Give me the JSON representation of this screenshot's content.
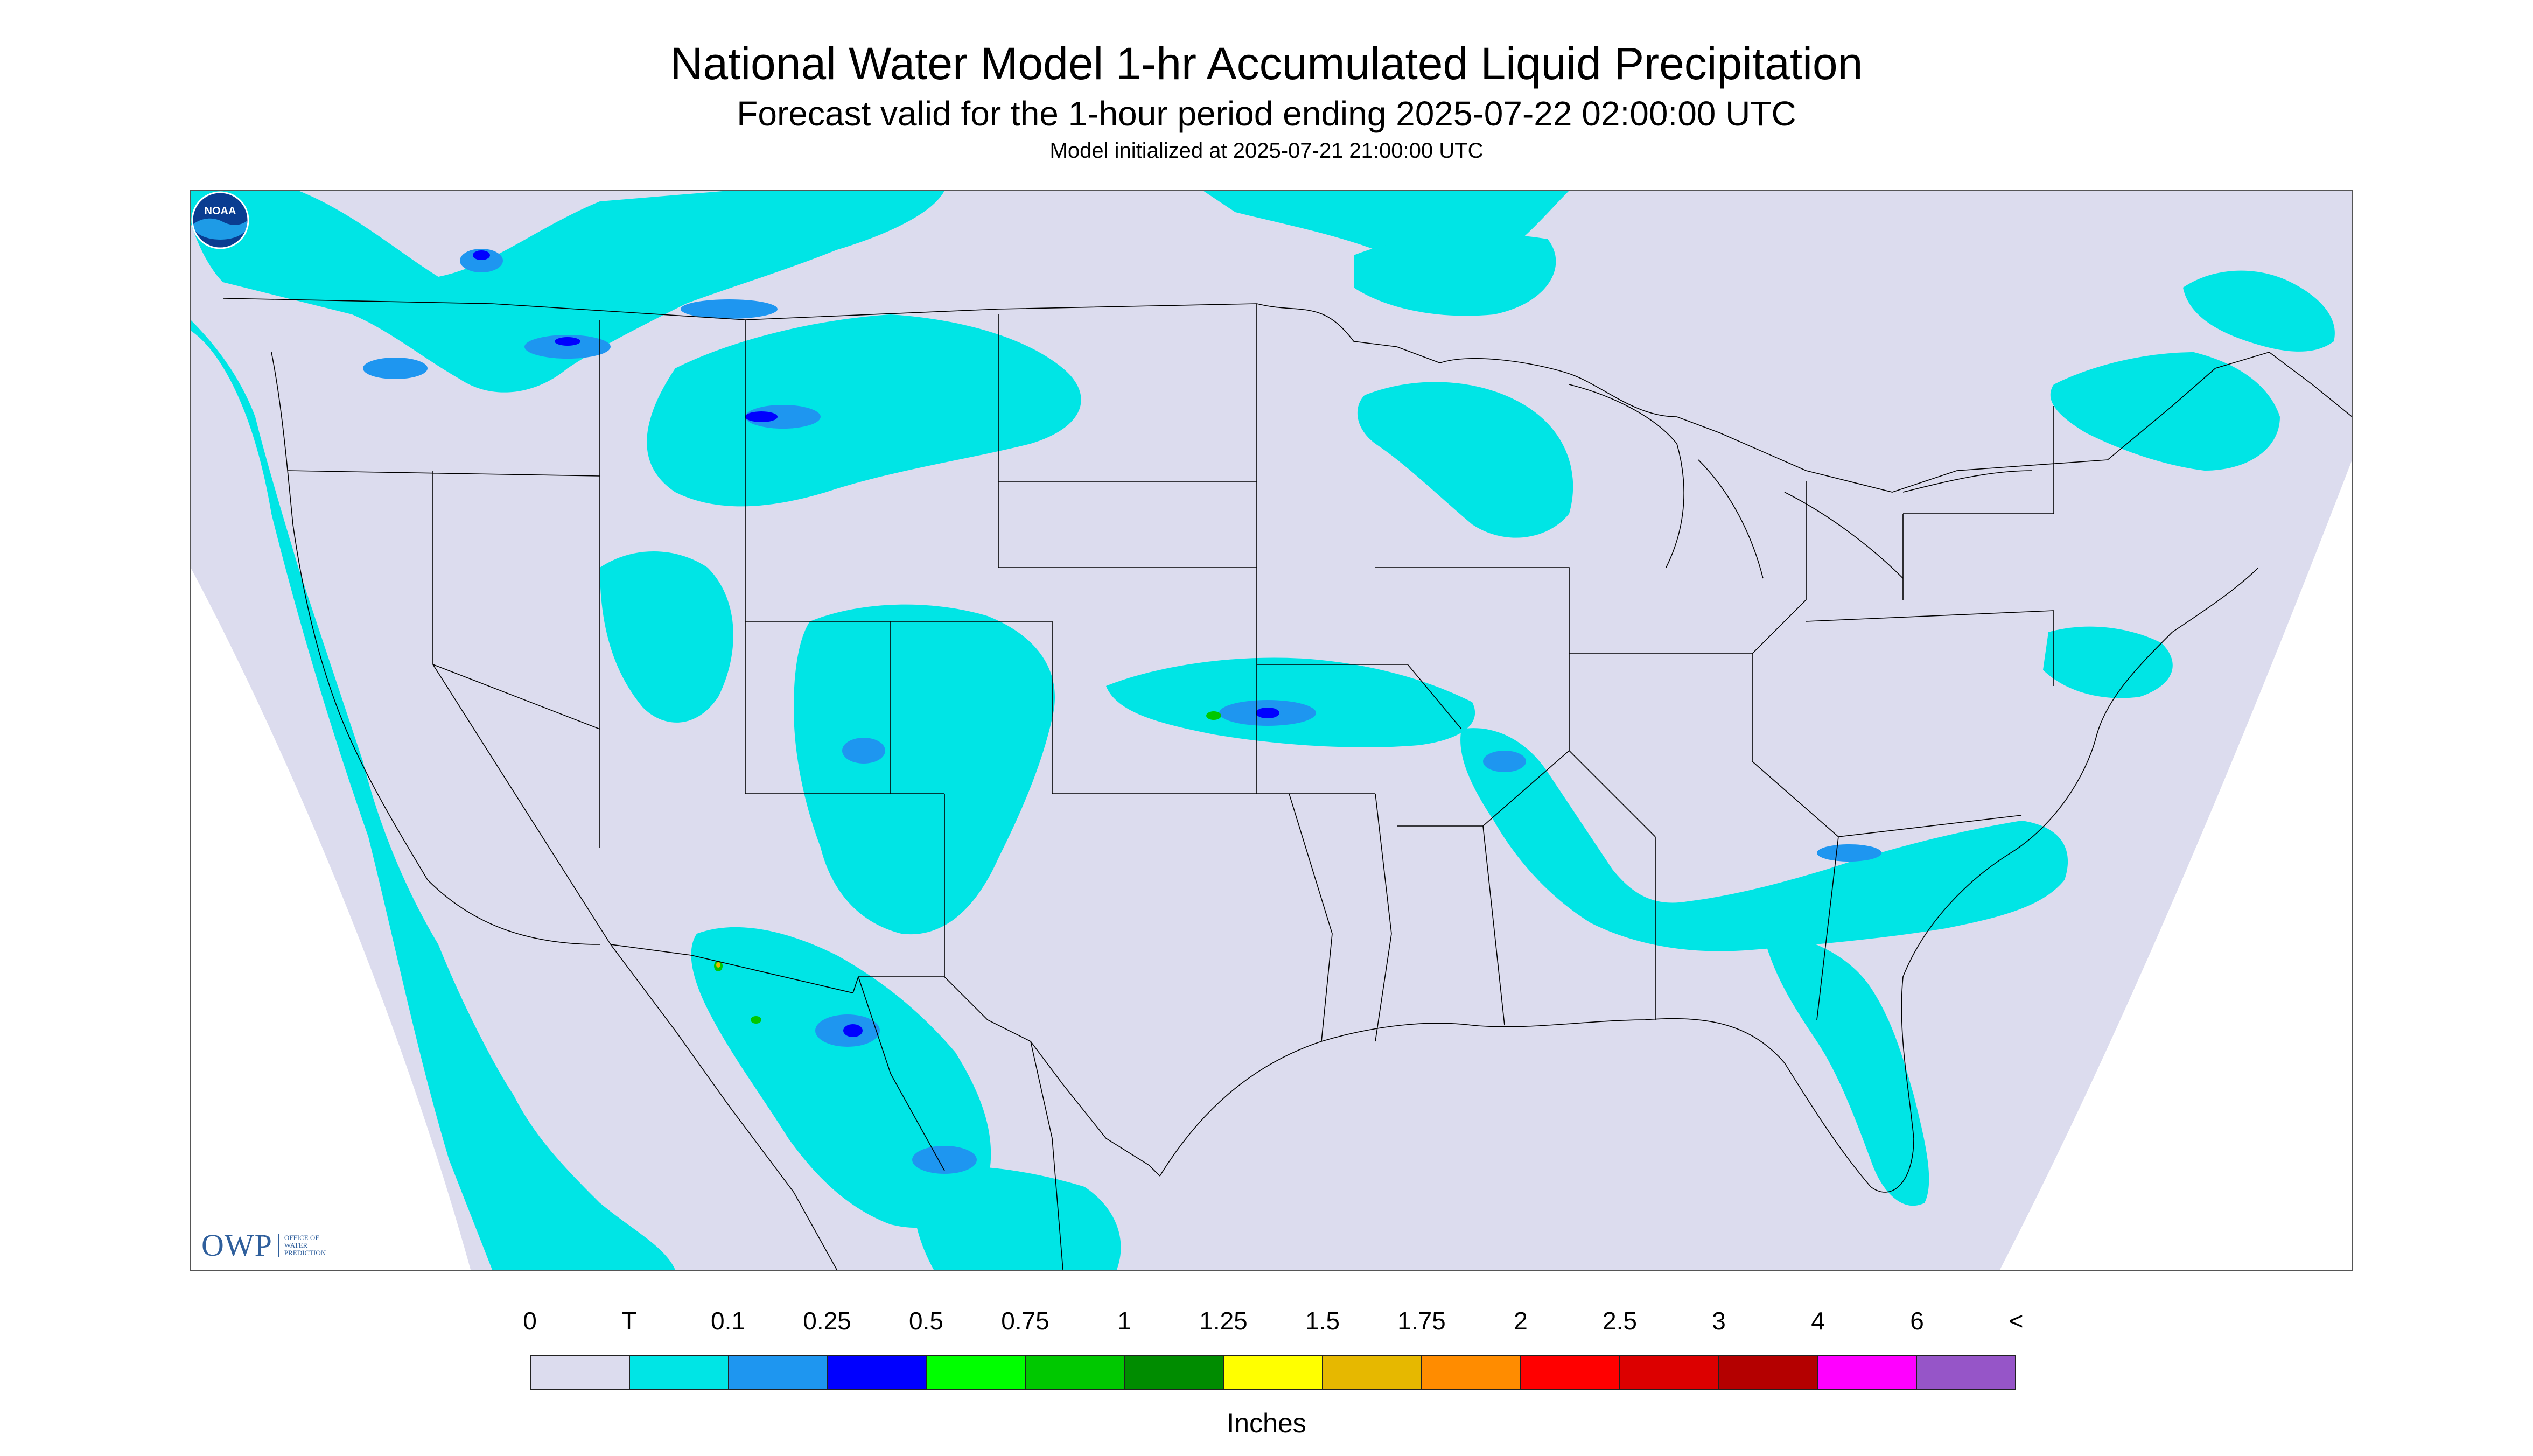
{
  "title": "National Water Model 1-hr Accumulated Liquid Precipitation",
  "subtitle": "Forecast valid for the 1-hour period ending 2025-07-22 02:00:00 UTC",
  "init_line": "Model initialized at 2025-07-21 21:00:00 UTC",
  "logos": {
    "owp_text": "OWP",
    "owp_subtitle": "OFFICE OF\nWATER\nPREDICTION",
    "noaa_text": "NOAA"
  },
  "legend": {
    "units": "Inches",
    "labels": [
      "0",
      "T",
      "0.1",
      "0.25",
      "0.5",
      "0.75",
      "1",
      "1.25",
      "1.5",
      "1.75",
      "2",
      "2.5",
      "3",
      "4",
      "6",
      "<"
    ],
    "colors": [
      "#dcdcee",
      "#00e5e5",
      "#1e96f0",
      "#0000ff",
      "#00ff00",
      "#00c800",
      "#008c00",
      "#ffff00",
      "#e6b800",
      "#ff8c00",
      "#ff0000",
      "#dc0000",
      "#b40000",
      "#ff00ff",
      "#9655c8"
    ]
  },
  "map_colors": {
    "no_precip": "#dcdcee",
    "trace": "#00e5e5",
    "light": "#1e96f0",
    "moderate": "#0000ff",
    "heavy": "#00c800",
    "extreme": "#e6b800",
    "outside": "#ffffff",
    "borders": "#000000"
  }
}
